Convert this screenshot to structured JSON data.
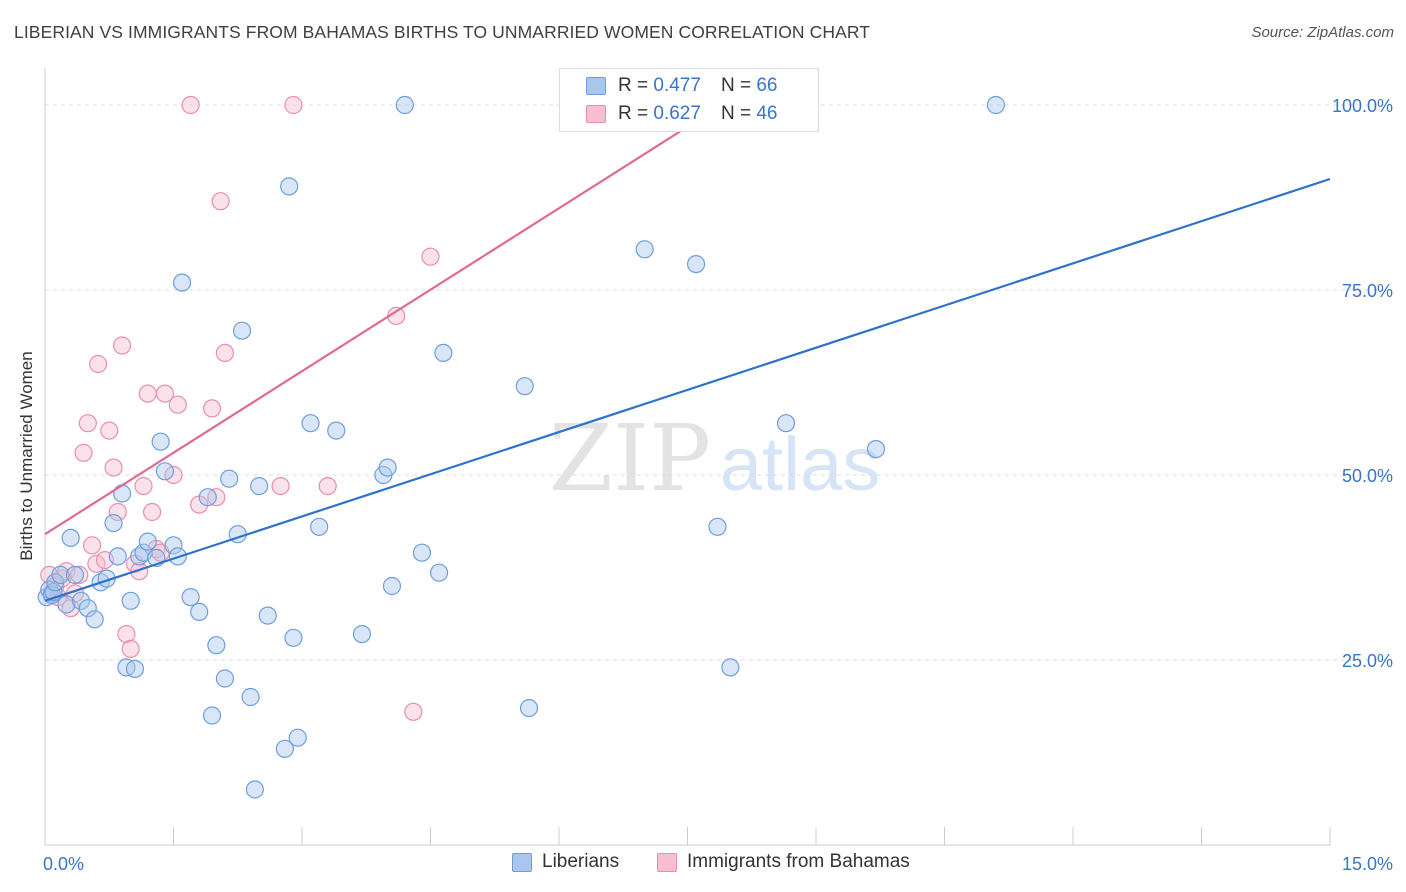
{
  "title": "LIBERIAN VS IMMIGRANTS FROM BAHAMAS BIRTHS TO UNMARRIED WOMEN CORRELATION CHART",
  "source": "Source: ZipAtlas.com",
  "watermark": {
    "zip": "ZIP",
    "atlas": "atlas"
  },
  "legend": {
    "r_label": "R =",
    "n_label": "N =",
    "rows": [
      {
        "r": "0.477",
        "n": "66"
      },
      {
        "r": "0.627",
        "n": "46"
      }
    ]
  },
  "bottom_legend": [
    "Liberians",
    "Immigrants from Bahamas"
  ],
  "colors": {
    "blue_fill": "#a9c7ee",
    "blue_stroke": "#6e9fdc",
    "blue_line": "#2f72cc",
    "pink_fill": "#f7bfd0",
    "pink_stroke": "#e98fad",
    "pink_line": "#e06a94",
    "axis_text": "#3a74c8",
    "grid": "#dcdcdc"
  },
  "chart_data": {
    "type": "scatter",
    "ylabel": "Births to Unmarried Women",
    "xlabel": "",
    "xlim": [
      0,
      15
    ],
    "ylim": [
      0,
      105
    ],
    "x_tick_labels": [
      "0.0%",
      "15.0%"
    ],
    "y_ticks": [
      25,
      50,
      75,
      100
    ],
    "y_tick_labels": [
      "25.0%",
      "50.0%",
      "75.0%",
      "100.0%"
    ],
    "grid": true,
    "legend_placement": "top-center",
    "series": [
      {
        "name": "Liberians",
        "r": 0.477,
        "n": 66,
        "trend": {
          "x": [
            0,
            15
          ],
          "y": [
            33,
            90
          ]
        },
        "points": [
          [
            0.02,
            33.5
          ],
          [
            0.05,
            34.5
          ],
          [
            0.08,
            33.8
          ],
          [
            0.1,
            34.2
          ],
          [
            0.12,
            35.5
          ],
          [
            0.18,
            36.5
          ],
          [
            0.25,
            32.5
          ],
          [
            0.3,
            41.5
          ],
          [
            0.35,
            36.5
          ],
          [
            0.42,
            33.0
          ],
          [
            0.5,
            32.0
          ],
          [
            0.58,
            30.5
          ],
          [
            0.65,
            35.5
          ],
          [
            0.72,
            36.0
          ],
          [
            0.8,
            43.5
          ],
          [
            0.85,
            39.0
          ],
          [
            0.9,
            47.5
          ],
          [
            0.95,
            24.0
          ],
          [
            1.0,
            33.0
          ],
          [
            1.05,
            23.8
          ],
          [
            1.1,
            39.0
          ],
          [
            1.15,
            39.5
          ],
          [
            1.2,
            41.0
          ],
          [
            1.3,
            38.8
          ],
          [
            1.35,
            54.5
          ],
          [
            1.4,
            50.5
          ],
          [
            1.5,
            40.5
          ],
          [
            1.55,
            39.0
          ],
          [
            1.6,
            76.0
          ],
          [
            1.7,
            33.5
          ],
          [
            1.8,
            31.5
          ],
          [
            1.9,
            47.0
          ],
          [
            1.95,
            17.5
          ],
          [
            2.0,
            27.0
          ],
          [
            2.1,
            22.5
          ],
          [
            2.15,
            49.5
          ],
          [
            2.25,
            42.0
          ],
          [
            2.3,
            69.5
          ],
          [
            2.4,
            20.0
          ],
          [
            2.45,
            7.5
          ],
          [
            2.5,
            48.5
          ],
          [
            2.6,
            31.0
          ],
          [
            2.8,
            13.0
          ],
          [
            2.85,
            89.0
          ],
          [
            2.9,
            28.0
          ],
          [
            2.95,
            14.5
          ],
          [
            3.1,
            57.0
          ],
          [
            3.2,
            43.0
          ],
          [
            3.4,
            56.0
          ],
          [
            3.7,
            28.5
          ],
          [
            3.95,
            50.0
          ],
          [
            4.0,
            51.0
          ],
          [
            4.05,
            35.0
          ],
          [
            4.2,
            100.0
          ],
          [
            4.4,
            39.5
          ],
          [
            4.6,
            36.8
          ],
          [
            4.65,
            66.5
          ],
          [
            5.6,
            62.0
          ],
          [
            5.65,
            18.5
          ],
          [
            7.0,
            80.5
          ],
          [
            7.6,
            78.5
          ],
          [
            7.85,
            43.0
          ],
          [
            8.0,
            24.0
          ],
          [
            8.65,
            57.0
          ],
          [
            9.7,
            53.5
          ],
          [
            11.1,
            100.0
          ]
        ]
      },
      {
        "name": "Immigrants from Bahamas",
        "r": 0.627,
        "n": 46,
        "trend": {
          "x": [
            0,
            7.9
          ],
          "y": [
            42,
            100
          ]
        },
        "points": [
          [
            0.05,
            36.5
          ],
          [
            0.08,
            34.0
          ],
          [
            0.12,
            35.0
          ],
          [
            0.15,
            33.5
          ],
          [
            0.2,
            36.0
          ],
          [
            0.25,
            37.0
          ],
          [
            0.3,
            32.0
          ],
          [
            0.35,
            34.0
          ],
          [
            0.4,
            36.5
          ],
          [
            0.45,
            53.0
          ],
          [
            0.5,
            57.0
          ],
          [
            0.55,
            40.5
          ],
          [
            0.6,
            38.0
          ],
          [
            0.62,
            65.0
          ],
          [
            0.7,
            38.5
          ],
          [
            0.75,
            56.0
          ],
          [
            0.8,
            51.0
          ],
          [
            0.85,
            45.0
          ],
          [
            0.9,
            67.5
          ],
          [
            0.95,
            28.5
          ],
          [
            1.0,
            26.5
          ],
          [
            1.05,
            38.0
          ],
          [
            1.1,
            37.0
          ],
          [
            1.15,
            48.5
          ],
          [
            1.2,
            61.0
          ],
          [
            1.25,
            45.0
          ],
          [
            1.3,
            40.0
          ],
          [
            1.35,
            39.5
          ],
          [
            1.4,
            61.0
          ],
          [
            1.5,
            50.0
          ],
          [
            1.55,
            59.5
          ],
          [
            1.7,
            100.0
          ],
          [
            1.8,
            46.0
          ],
          [
            1.95,
            59.0
          ],
          [
            2.0,
            47.0
          ],
          [
            2.05,
            87.0
          ],
          [
            2.1,
            66.5
          ],
          [
            2.75,
            48.5
          ],
          [
            2.9,
            100.0
          ],
          [
            3.3,
            48.5
          ],
          [
            4.1,
            71.5
          ],
          [
            4.3,
            18.0
          ],
          [
            4.5,
            79.5
          ],
          [
            7.7,
            100.0
          ],
          [
            8.3,
            100.0
          ],
          [
            8.9,
            100.0
          ]
        ]
      }
    ]
  }
}
